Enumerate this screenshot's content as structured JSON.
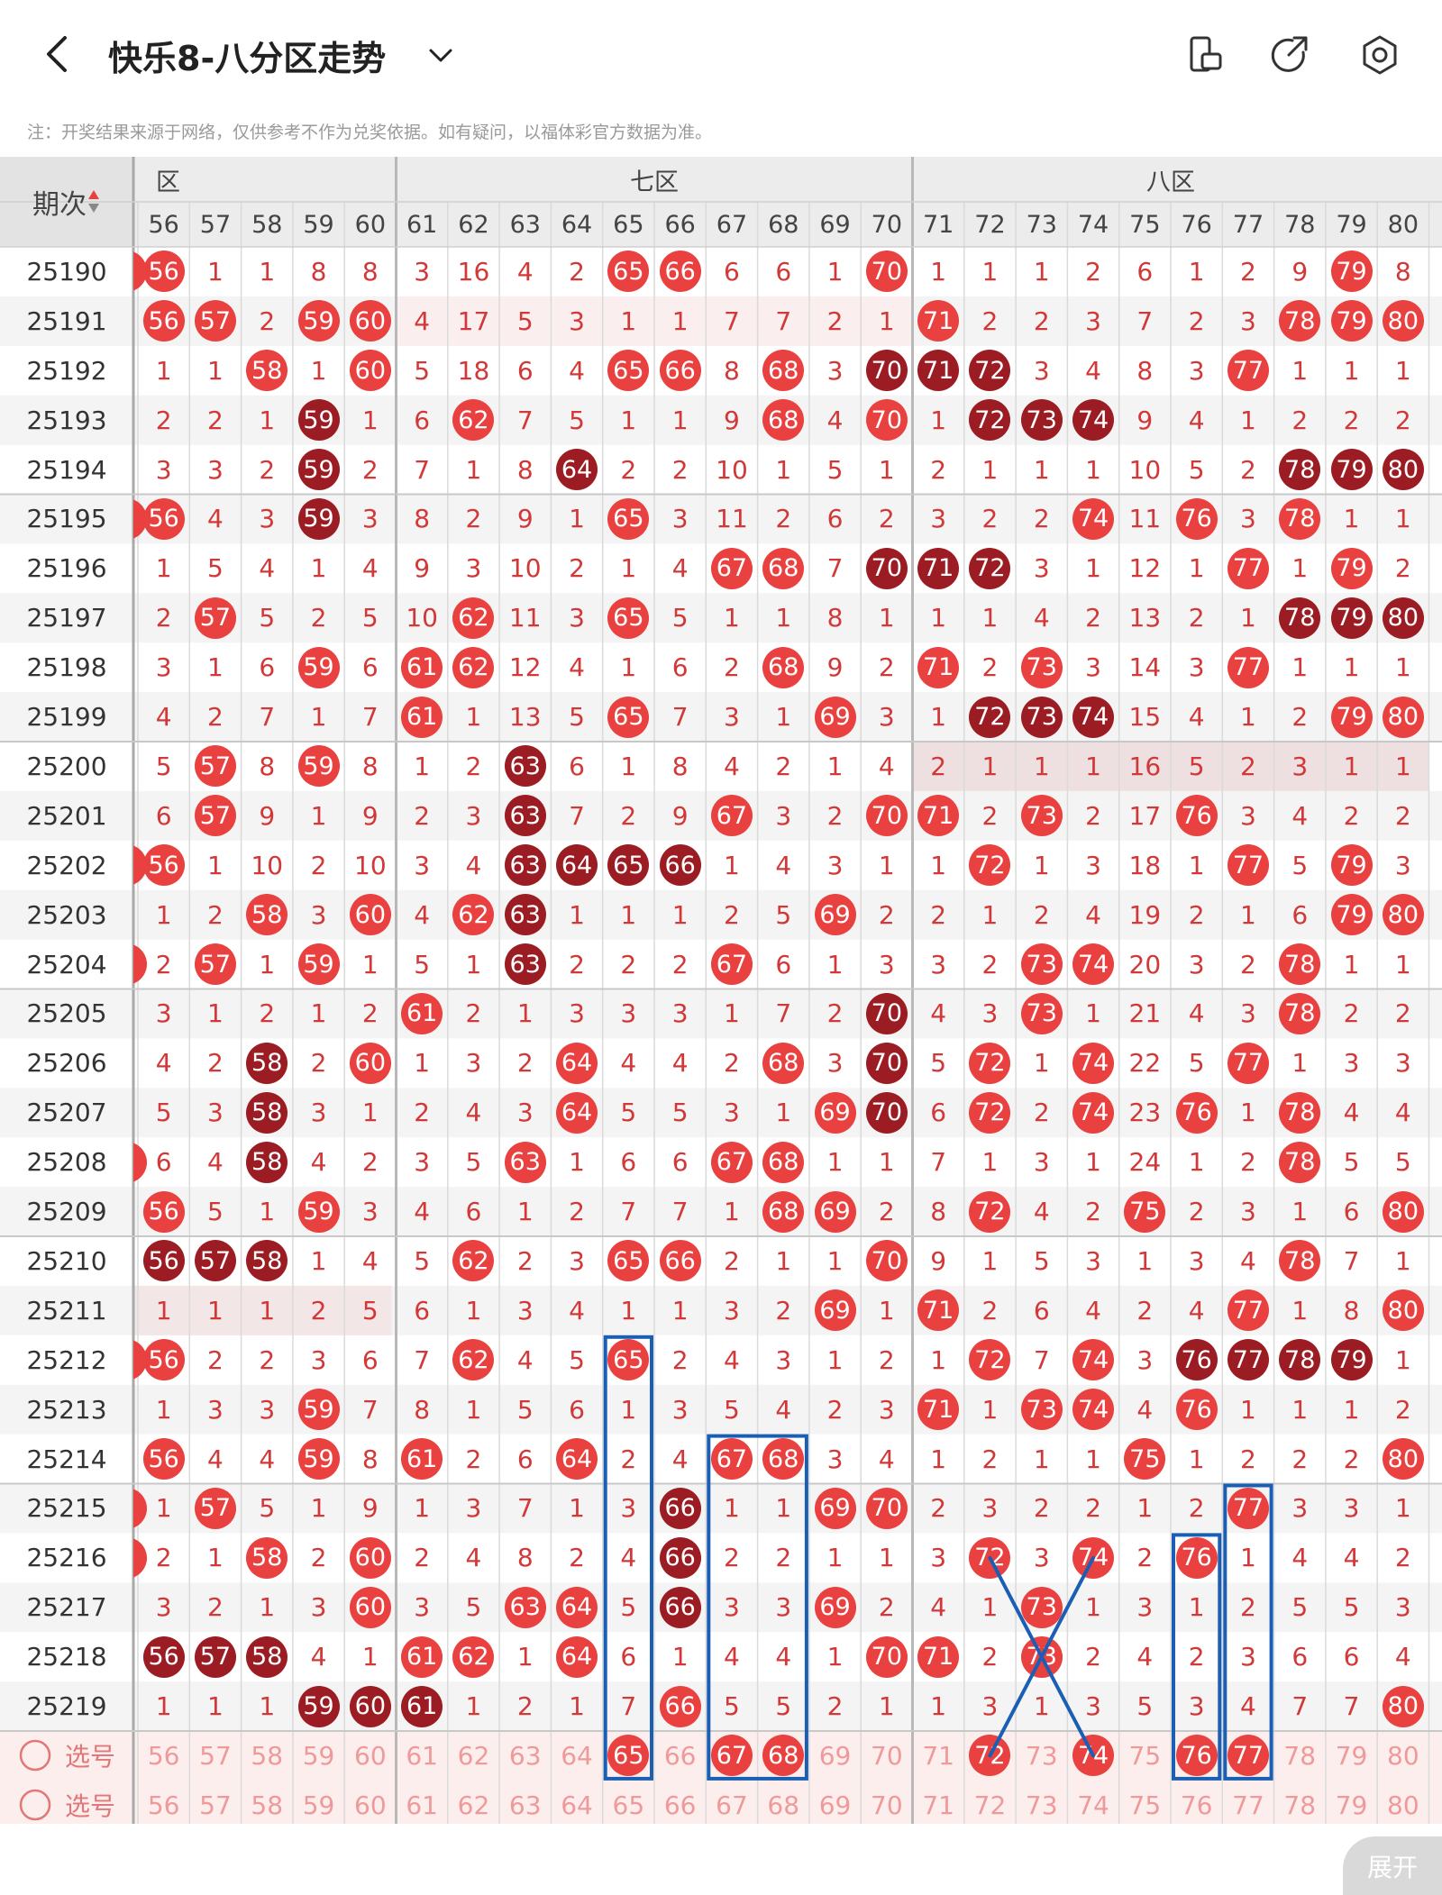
{
  "header": {
    "title": "快乐8-八分区走势"
  },
  "note": "注：开奖结果来源于网络，仅供参考不作为兑奖依据。如有疑问，以福体彩官方数据为准。",
  "table": {
    "period_header": "期次",
    "zones": [
      {
        "label": "六区"
      },
      {
        "label": "七区"
      },
      {
        "label": "八区"
      }
    ],
    "columns": [
      "56",
      "57",
      "58",
      "59",
      "60",
      "61",
      "62",
      "63",
      "64",
      "65",
      "66",
      "67",
      "68",
      "69",
      "70",
      "71",
      "72",
      "73",
      "74",
      "75",
      "76",
      "77",
      "78",
      "79",
      "80"
    ],
    "rows": [
      {
        "period": "25190",
        "cells": [
          "56",
          "1",
          "1",
          "8",
          "8",
          "3",
          "16",
          "4",
          "2",
          "65",
          "66",
          "6",
          "6",
          "1",
          "70",
          "1",
          "1",
          "1",
          "2",
          "6",
          "1",
          "2",
          "9",
          "79",
          "8"
        ]
      },
      {
        "period": "25191",
        "cells": [
          "56",
          "57",
          "2",
          "59",
          "60",
          "4",
          "17",
          "5",
          "3",
          "1",
          "1",
          "7",
          "7",
          "2",
          "1",
          "71",
          "2",
          "2",
          "3",
          "7",
          "2",
          "3",
          "78",
          "79",
          "80"
        ]
      },
      {
        "period": "25192",
        "cells": [
          "1",
          "1",
          "58",
          "1",
          "60",
          "5",
          "18",
          "6",
          "4",
          "65",
          "66",
          "8",
          "68",
          "3",
          "70",
          "71",
          "72",
          "3",
          "4",
          "8",
          "3",
          "77",
          "1",
          "1",
          "1"
        ]
      },
      {
        "period": "25193",
        "cells": [
          "2",
          "2",
          "1",
          "59",
          "1",
          "6",
          "62",
          "7",
          "5",
          "1",
          "1",
          "9",
          "68",
          "4",
          "70",
          "1",
          "72",
          "73",
          "74",
          "9",
          "4",
          "1",
          "2",
          "2",
          "2"
        ]
      },
      {
        "period": "25194",
        "cells": [
          "3",
          "3",
          "2",
          "59",
          "2",
          "7",
          "1",
          "8",
          "64",
          "2",
          "2",
          "10",
          "1",
          "5",
          "1",
          "2",
          "1",
          "1",
          "1",
          "10",
          "5",
          "2",
          "78",
          "79",
          "80"
        ]
      },
      {
        "period": "25195",
        "cells": [
          "56",
          "4",
          "3",
          "59",
          "3",
          "8",
          "2",
          "9",
          "1",
          "65",
          "3",
          "11",
          "2",
          "6",
          "2",
          "3",
          "2",
          "2",
          "74",
          "11",
          "76",
          "3",
          "78",
          "1",
          "1"
        ]
      },
      {
        "period": "25196",
        "cells": [
          "1",
          "5",
          "4",
          "1",
          "4",
          "9",
          "3",
          "10",
          "2",
          "1",
          "4",
          "67",
          "68",
          "7",
          "70",
          "71",
          "72",
          "3",
          "1",
          "12",
          "1",
          "77",
          "1",
          "79",
          "2"
        ]
      },
      {
        "period": "25197",
        "cells": [
          "2",
          "57",
          "5",
          "2",
          "5",
          "10",
          "62",
          "11",
          "3",
          "65",
          "5",
          "1",
          "1",
          "8",
          "1",
          "1",
          "1",
          "4",
          "2",
          "13",
          "2",
          "1",
          "78",
          "79",
          "80"
        ]
      },
      {
        "period": "25198",
        "cells": [
          "3",
          "1",
          "6",
          "59",
          "6",
          "61",
          "62",
          "12",
          "4",
          "1",
          "6",
          "2",
          "68",
          "9",
          "2",
          "71",
          "2",
          "73",
          "3",
          "14",
          "3",
          "77",
          "1",
          "1",
          "1"
        ]
      },
      {
        "period": "25199",
        "cells": [
          "4",
          "2",
          "7",
          "1",
          "7",
          "61",
          "1",
          "13",
          "5",
          "65",
          "7",
          "3",
          "1",
          "69",
          "3",
          "1",
          "72",
          "73",
          "74",
          "15",
          "4",
          "1",
          "2",
          "79",
          "80"
        ]
      },
      {
        "period": "25200",
        "cells": [
          "5",
          "57",
          "8",
          "59",
          "8",
          "1",
          "2",
          "63",
          "6",
          "1",
          "8",
          "4",
          "2",
          "1",
          "4",
          "2",
          "1",
          "1",
          "1",
          "16",
          "5",
          "2",
          "3",
          "1",
          "1"
        ]
      },
      {
        "period": "25201",
        "cells": [
          "6",
          "57",
          "9",
          "1",
          "9",
          "2",
          "3",
          "63",
          "7",
          "2",
          "9",
          "67",
          "3",
          "2",
          "70",
          "71",
          "2",
          "73",
          "2",
          "17",
          "76",
          "3",
          "4",
          "2",
          "2"
        ]
      },
      {
        "period": "25202",
        "cells": [
          "56",
          "1",
          "10",
          "2",
          "10",
          "3",
          "4",
          "63",
          "64",
          "65",
          "66",
          "1",
          "4",
          "3",
          "1",
          "1",
          "72",
          "1",
          "3",
          "18",
          "1",
          "77",
          "5",
          "79",
          "3"
        ]
      },
      {
        "period": "25203",
        "cells": [
          "1",
          "2",
          "58",
          "3",
          "60",
          "4",
          "62",
          "63",
          "1",
          "1",
          "1",
          "2",
          "5",
          "69",
          "2",
          "2",
          "1",
          "2",
          "4",
          "19",
          "2",
          "1",
          "6",
          "79",
          "80"
        ]
      },
      {
        "period": "25204",
        "cells": [
          "2",
          "57",
          "1",
          "59",
          "1",
          "5",
          "1",
          "63",
          "2",
          "2",
          "2",
          "67",
          "6",
          "1",
          "3",
          "3",
          "2",
          "73",
          "74",
          "20",
          "3",
          "2",
          "78",
          "1",
          "1"
        ]
      },
      {
        "period": "25205",
        "cells": [
          "3",
          "1",
          "2",
          "1",
          "2",
          "61",
          "2",
          "1",
          "3",
          "3",
          "3",
          "1",
          "7",
          "2",
          "70",
          "4",
          "3",
          "73",
          "1",
          "21",
          "4",
          "3",
          "78",
          "2",
          "2"
        ]
      },
      {
        "period": "25206",
        "cells": [
          "4",
          "2",
          "58",
          "2",
          "60",
          "1",
          "3",
          "2",
          "64",
          "4",
          "4",
          "2",
          "68",
          "3",
          "70",
          "5",
          "72",
          "1",
          "74",
          "22",
          "5",
          "77",
          "1",
          "3",
          "3"
        ]
      },
      {
        "period": "25207",
        "cells": [
          "5",
          "3",
          "58",
          "3",
          "1",
          "2",
          "4",
          "3",
          "64",
          "5",
          "5",
          "3",
          "1",
          "69",
          "70",
          "6",
          "72",
          "2",
          "74",
          "23",
          "76",
          "1",
          "78",
          "4",
          "4"
        ]
      },
      {
        "period": "25208",
        "cells": [
          "6",
          "4",
          "58",
          "4",
          "2",
          "3",
          "5",
          "63",
          "1",
          "6",
          "6",
          "67",
          "68",
          "1",
          "1",
          "7",
          "1",
          "3",
          "1",
          "24",
          "1",
          "2",
          "78",
          "5",
          "5"
        ]
      },
      {
        "period": "25209",
        "cells": [
          "56",
          "5",
          "1",
          "59",
          "3",
          "4",
          "6",
          "1",
          "2",
          "7",
          "7",
          "1",
          "68",
          "69",
          "2",
          "8",
          "72",
          "4",
          "2",
          "75",
          "2",
          "3",
          "1",
          "6",
          "80"
        ]
      },
      {
        "period": "25210",
        "cells": [
          "56",
          "57",
          "58",
          "1",
          "4",
          "5",
          "62",
          "2",
          "3",
          "65",
          "66",
          "2",
          "1",
          "1",
          "70",
          "9",
          "1",
          "5",
          "3",
          "1",
          "3",
          "4",
          "78",
          "7",
          "1"
        ]
      },
      {
        "period": "25211",
        "cells": [
          "1",
          "1",
          "1",
          "2",
          "5",
          "6",
          "1",
          "3",
          "4",
          "1",
          "1",
          "3",
          "2",
          "69",
          "1",
          "71",
          "2",
          "6",
          "4",
          "2",
          "4",
          "77",
          "1",
          "8",
          "80"
        ]
      },
      {
        "period": "25212",
        "cells": [
          "56",
          "2",
          "2",
          "3",
          "6",
          "7",
          "62",
          "4",
          "5",
          "65",
          "2",
          "4",
          "3",
          "1",
          "2",
          "1",
          "72",
          "7",
          "74",
          "3",
          "76",
          "77",
          "78",
          "79",
          "1"
        ]
      },
      {
        "period": "25213",
        "cells": [
          "1",
          "3",
          "3",
          "59",
          "7",
          "8",
          "1",
          "5",
          "6",
          "1",
          "3",
          "5",
          "4",
          "2",
          "3",
          "71",
          "1",
          "73",
          "74",
          "4",
          "76",
          "1",
          "1",
          "1",
          "2"
        ]
      },
      {
        "period": "25214",
        "cells": [
          "56",
          "4",
          "4",
          "59",
          "8",
          "61",
          "2",
          "6",
          "64",
          "2",
          "4",
          "67",
          "68",
          "3",
          "4",
          "1",
          "2",
          "1",
          "1",
          "75",
          "1",
          "2",
          "2",
          "2",
          "80"
        ]
      },
      {
        "period": "25215",
        "cells": [
          "1",
          "57",
          "5",
          "1",
          "9",
          "1",
          "3",
          "7",
          "1",
          "3",
          "66",
          "1",
          "1",
          "69",
          "70",
          "2",
          "3",
          "2",
          "2",
          "1",
          "2",
          "77",
          "3",
          "3",
          "1"
        ]
      },
      {
        "period": "25216",
        "cells": [
          "2",
          "1",
          "58",
          "2",
          "60",
          "2",
          "4",
          "8",
          "2",
          "4",
          "66",
          "2",
          "2",
          "1",
          "1",
          "3",
          "72",
          "3",
          "74",
          "2",
          "76",
          "1",
          "4",
          "4",
          "2"
        ]
      },
      {
        "period": "25217",
        "cells": [
          "3",
          "2",
          "1",
          "3",
          "60",
          "3",
          "5",
          "63",
          "64",
          "5",
          "66",
          "3",
          "3",
          "69",
          "2",
          "4",
          "1",
          "73",
          "1",
          "3",
          "1",
          "2",
          "5",
          "5",
          "3"
        ]
      },
      {
        "period": "25218",
        "cells": [
          "56",
          "57",
          "58",
          "4",
          "1",
          "61",
          "62",
          "1",
          "64",
          "6",
          "1",
          "4",
          "4",
          "1",
          "70",
          "71",
          "2",
          "73",
          "2",
          "4",
          "2",
          "3",
          "6",
          "6",
          "4"
        ]
      },
      {
        "period": "25219",
        "cells": [
          "1",
          "1",
          "1",
          "59",
          "60",
          "61",
          "1",
          "2",
          "1",
          "7",
          "66",
          "5",
          "5",
          "2",
          "1",
          "1",
          "3",
          "1",
          "3",
          "5",
          "3",
          "4",
          "7",
          "7",
          "80"
        ]
      }
    ],
    "select_rows": [
      {
        "label": "选号",
        "selected": [
          "65",
          "67",
          "68",
          "72",
          "74",
          "76",
          "77"
        ]
      },
      {
        "label": "选号",
        "selected": []
      }
    ]
  },
  "expand_label": "展开",
  "colors": {
    "ball_red": "#e94040",
    "ball_dark": "#9b1c22",
    "annotation_blue": "#1a5fb4"
  }
}
